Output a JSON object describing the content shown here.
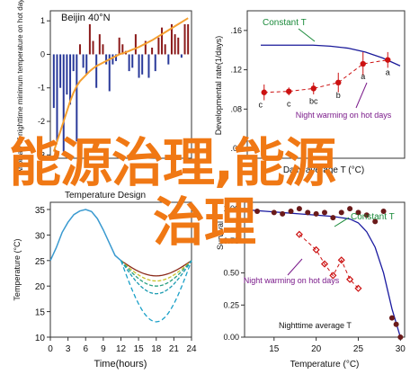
{
  "overlay_text": {
    "line1": "能源治理,能源",
    "line2": "治理"
  },
  "chart_data": [
    {
      "type": "bar",
      "title": "Beijin 40°N",
      "ylabel": "Anomaly of nighttime minimum temperature on hot days",
      "yticks": [
        "1",
        "0",
        "-1",
        "-2",
        "-3"
      ],
      "ylim": [
        -3.1,
        1.3
      ],
      "colors": {
        "bars": "#8b1a1a",
        "trend": "#f5a030"
      },
      "x": [
        1,
        2,
        3,
        4,
        5,
        6,
        7,
        8,
        9,
        10,
        11,
        12,
        13,
        14,
        15,
        16,
        17,
        18,
        19,
        20,
        21,
        22,
        23,
        24,
        25,
        26,
        27,
        28,
        29,
        30,
        31,
        32,
        33,
        34,
        35,
        36,
        37,
        38,
        39,
        40,
        41,
        42
      ],
      "values": [
        -1.6,
        -2.6,
        -1.0,
        -2.9,
        -1.2,
        -1.5,
        -0.5,
        -2.6,
        0.3,
        -0.4,
        -0.6,
        0.9,
        0.4,
        -1.0,
        0.6,
        0.3,
        -0.3,
        -1.1,
        -0.3,
        -0.2,
        0.5,
        0.3,
        0.1,
        -0.5,
        -0.4,
        0.6,
        -0.7,
        -0.6,
        0.4,
        -0.7,
        0.2,
        -0.5,
        0.5,
        0.8,
        0.3,
        -0.3,
        0.9,
        0.6,
        0.5,
        -0.1,
        0.9,
        0.9
      ],
      "trend": [
        -2.9,
        -2.6,
        -2.3,
        -2.0,
        -1.7,
        -1.4,
        -1.15,
        -0.95,
        -0.8,
        -0.7,
        -0.6,
        -0.5,
        -0.42,
        -0.35,
        -0.3,
        -0.25,
        -0.2,
        -0.15,
        -0.1,
        -0.05,
        0.0,
        0.03,
        0.06,
        0.1,
        0.14,
        0.18,
        0.22,
        0.27,
        0.32,
        0.37,
        0.42,
        0.48,
        0.54,
        0.6,
        0.66,
        0.72,
        0.78,
        0.84,
        0.9,
        0.96,
        1.02,
        1.08
      ]
    },
    {
      "type": "scatter",
      "ylabel": "Developmental rate(1/days)",
      "xlabel": "Daily average T (°C)",
      "yticks": [
        ".04",
        ".08",
        ".12",
        ".16"
      ],
      "ylim": [
        0.03,
        0.18
      ],
      "legend": [
        "Constant T",
        "Night warming on hot days"
      ],
      "colors": {
        "constant": "#1a1a9a",
        "night": "#cc1111",
        "annot_constant": "#1a8a3a",
        "annot_night": "#7a1a8a"
      },
      "constant_curve": [
        0.145,
        0.145,
        0.145,
        0.145,
        0.144,
        0.142,
        0.138,
        0.132,
        0.124
      ],
      "points": [
        {
          "x": 1,
          "y": 0.097,
          "err": 0.008,
          "letter": "c"
        },
        {
          "x": 2,
          "y": 0.098,
          "err": 0.004,
          "letter": "c"
        },
        {
          "x": 3,
          "y": 0.101,
          "err": 0.006,
          "letter": "bc"
        },
        {
          "x": 4,
          "y": 0.107,
          "err": 0.01,
          "letter": "b"
        },
        {
          "x": 5,
          "y": 0.126,
          "err": 0.012,
          "letter": "a"
        },
        {
          "x": 6,
          "y": 0.13,
          "err": 0.008,
          "letter": "a"
        }
      ]
    },
    {
      "type": "area",
      "title": "Temperature Design",
      "xlabel": "Time(hours)",
      "ylabel": "Temperature (°C)",
      "xticks": [
        "0",
        "3",
        "6",
        "9",
        "12",
        "15",
        "18",
        "21",
        "24"
      ],
      "yticks": [
        "10",
        "15",
        "20",
        "25",
        "30",
        "35"
      ],
      "xlim": [
        0,
        24
      ],
      "ylim": [
        10,
        35
      ],
      "colors": [
        "#8b2a1a",
        "#c9c22a",
        "#2aa080",
        "#1a9ab0",
        "#1aa0c8"
      ],
      "day_curve": [
        [
          0,
          25
        ],
        [
          1,
          27.5
        ],
        [
          2,
          30.5
        ],
        [
          3,
          32.5
        ],
        [
          4,
          34
        ],
        [
          5,
          34.7
        ],
        [
          6,
          35
        ],
        [
          7,
          34.6
        ],
        [
          8,
          33.2
        ],
        [
          9,
          31
        ],
        [
          10,
          28.5
        ],
        [
          11,
          26
        ],
        [
          12,
          25
        ]
      ],
      "night_minima": [
        22,
        21,
        20,
        18.5,
        13
      ]
    },
    {
      "type": "scatter",
      "xlabel": "Temperature (°C)",
      "ylabel": "Survival",
      "xticks": [
        "15",
        "20",
        "25",
        "30"
      ],
      "yticks": [
        "0.00",
        "0.25",
        "0.50",
        "0.75",
        "1.00"
      ],
      "xlim": [
        11.5,
        30.5
      ],
      "ylim": [
        0,
        1.05
      ],
      "legend": [
        "Constant T",
        "Night warming on hot days",
        "Nighttime average T"
      ],
      "colors": {
        "curve": "#1a1aa0",
        "dots": "#6a1a1a",
        "diamonds": "#cc1111",
        "annot_constant": "#1a8a3a",
        "annot_night": "#7a1a8a"
      },
      "curve": [
        [
          12,
          0.99
        ],
        [
          14,
          0.98
        ],
        [
          16,
          0.97
        ],
        [
          18,
          0.96
        ],
        [
          20,
          0.95
        ],
        [
          22,
          0.94
        ],
        [
          24,
          0.92
        ],
        [
          25,
          0.89
        ],
        [
          26,
          0.82
        ],
        [
          27,
          0.7
        ],
        [
          28,
          0.5
        ],
        [
          29,
          0.22
        ],
        [
          30,
          0.0
        ]
      ],
      "dots": [
        [
          13,
          0.98
        ],
        [
          15,
          0.97
        ],
        [
          16,
          0.96
        ],
        [
          17,
          0.98
        ],
        [
          18,
          1.0
        ],
        [
          19,
          0.97
        ],
        [
          20,
          0.96
        ],
        [
          21,
          0.97
        ],
        [
          22,
          0.93
        ],
        [
          23,
          0.97
        ],
        [
          24,
          1.0
        ],
        [
          25,
          0.97
        ],
        [
          26,
          0.95
        ],
        [
          27,
          0.9
        ],
        [
          28,
          0.98
        ],
        [
          29,
          0.15
        ],
        [
          29.5,
          0.1
        ],
        [
          30,
          0.0
        ]
      ],
      "diamonds": [
        [
          18,
          0.8
        ],
        [
          20,
          0.68
        ],
        [
          21,
          0.57
        ],
        [
          22,
          0.48
        ],
        [
          23,
          0.6
        ],
        [
          24,
          0.45
        ],
        [
          25,
          0.38
        ]
      ]
    }
  ]
}
